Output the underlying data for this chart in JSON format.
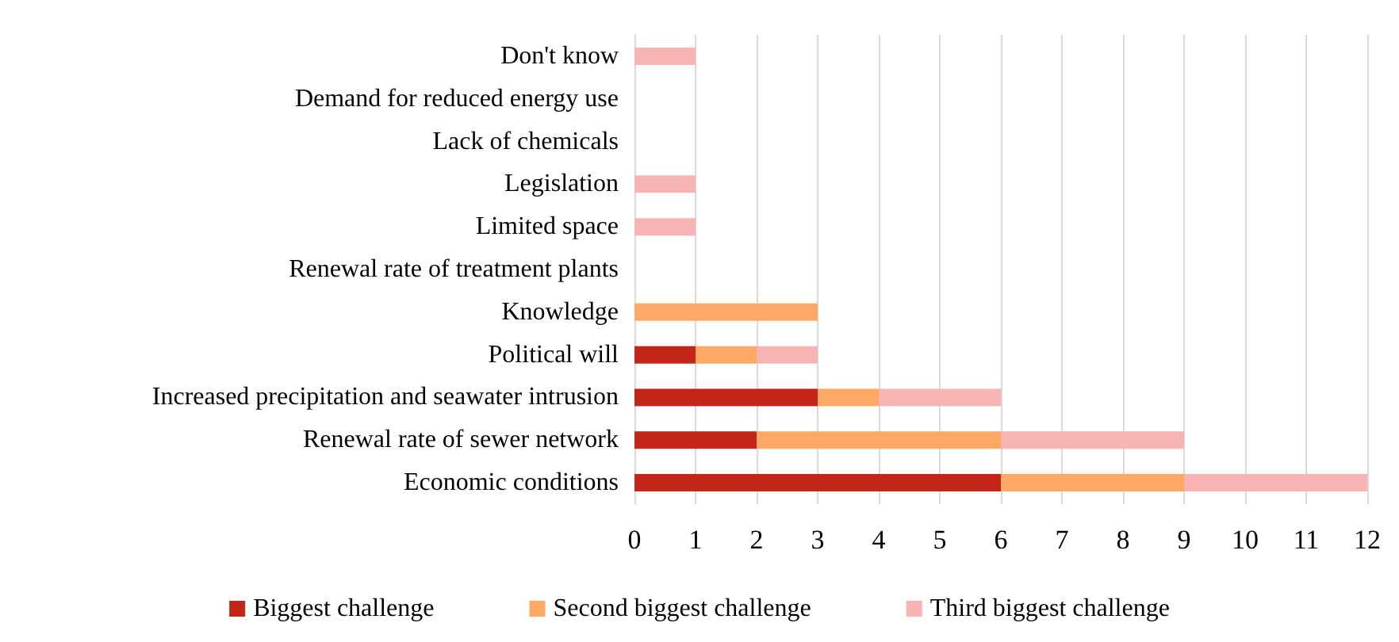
{
  "chart_data": {
    "type": "bar",
    "orientation": "horizontal",
    "stacked": true,
    "categories": [
      "Don't know",
      "Demand for reduced energy use",
      "Lack of chemicals",
      "Legislation",
      "Limited space",
      "Renewal rate of treatment plants",
      "Knowledge",
      "Political will",
      "Increased precipitation and seawater intrusion",
      "Renewal rate of sewer network",
      "Economic conditions"
    ],
    "series": [
      {
        "name": "Biggest challenge",
        "color": "#c32519",
        "values": [
          0,
          0,
          0,
          0,
          0,
          0,
          0,
          1,
          3,
          2,
          6
        ]
      },
      {
        "name": "Second biggest challenge",
        "color": "#fea866",
        "values": [
          0,
          0,
          0,
          0,
          0,
          0,
          3,
          1,
          1,
          4,
          3
        ]
      },
      {
        "name": "Third biggest challenge",
        "color": "#f7b4b3",
        "values": [
          1,
          0,
          0,
          1,
          1,
          0,
          0,
          1,
          2,
          3,
          3
        ]
      }
    ],
    "xlim": [
      0,
      12
    ],
    "xticks": [
      0,
      1,
      2,
      3,
      4,
      5,
      6,
      7,
      8,
      9,
      10,
      11,
      12
    ],
    "grid": "x",
    "legend": "bottom"
  }
}
